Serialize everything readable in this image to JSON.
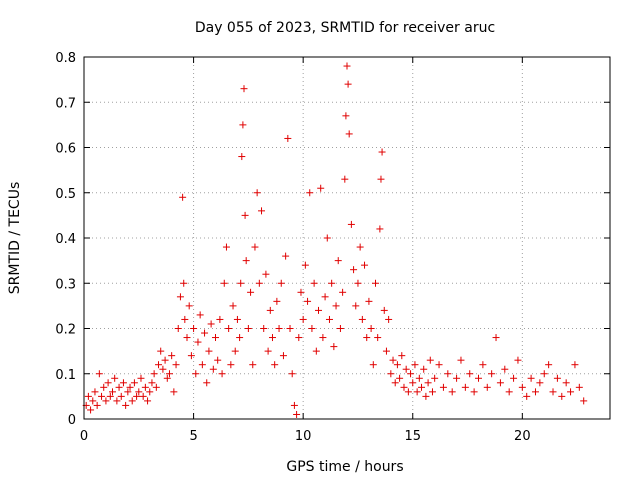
{
  "chart_data": {
    "type": "scatter",
    "title": "Day 055 of 2023, SRMTID for receiver aruc",
    "xlabel": "GPS time / hours",
    "ylabel": "SRMTID / TECUs",
    "xlim": [
      0,
      24
    ],
    "ylim": [
      0,
      0.8
    ],
    "xticks": [
      0,
      5,
      10,
      15,
      20
    ],
    "xtick_labels": [
      "0",
      "5",
      "10",
      "15",
      "20"
    ],
    "yticks": [
      0,
      0.1,
      0.2,
      0.3,
      0.4,
      0.5,
      0.6,
      0.7,
      0.8
    ],
    "ytick_labels": [
      "0",
      "0.1",
      "0.2",
      "0.3",
      "0.4",
      "0.5",
      "0.6",
      "0.7",
      "0.8"
    ],
    "grid": true,
    "marker": "plus",
    "marker_color": "#e00000",
    "series": [
      {
        "name": "SRMTID",
        "points": [
          [
            0.1,
            0.03
          ],
          [
            0.2,
            0.05
          ],
          [
            0.3,
            0.02
          ],
          [
            0.4,
            0.04
          ],
          [
            0.5,
            0.06
          ],
          [
            0.6,
            0.03
          ],
          [
            0.7,
            0.1
          ],
          [
            0.8,
            0.05
          ],
          [
            0.9,
            0.07
          ],
          [
            1.0,
            0.04
          ],
          [
            1.1,
            0.08
          ],
          [
            1.2,
            0.05
          ],
          [
            1.3,
            0.06
          ],
          [
            1.4,
            0.09
          ],
          [
            1.5,
            0.04
          ],
          [
            1.6,
            0.07
          ],
          [
            1.7,
            0.05
          ],
          [
            1.8,
            0.08
          ],
          [
            1.9,
            0.03
          ],
          [
            2.0,
            0.06
          ],
          [
            2.1,
            0.07
          ],
          [
            2.2,
            0.04
          ],
          [
            2.3,
            0.08
          ],
          [
            2.4,
            0.05
          ],
          [
            2.5,
            0.06
          ],
          [
            2.6,
            0.09
          ],
          [
            2.7,
            0.05
          ],
          [
            2.8,
            0.07
          ],
          [
            2.9,
            0.04
          ],
          [
            3.0,
            0.06
          ],
          [
            3.1,
            0.08
          ],
          [
            3.2,
            0.1
          ],
          [
            3.3,
            0.07
          ],
          [
            3.4,
            0.12
          ],
          [
            3.5,
            0.15
          ],
          [
            3.6,
            0.11
          ],
          [
            3.7,
            0.13
          ],
          [
            3.8,
            0.09
          ],
          [
            3.9,
            0.1
          ],
          [
            4.0,
            0.14
          ],
          [
            4.1,
            0.06
          ],
          [
            4.2,
            0.12
          ],
          [
            4.3,
            0.2
          ],
          [
            4.4,
            0.27
          ],
          [
            4.5,
            0.49
          ],
          [
            4.55,
            0.3
          ],
          [
            4.6,
            0.22
          ],
          [
            4.7,
            0.18
          ],
          [
            4.8,
            0.25
          ],
          [
            4.9,
            0.14
          ],
          [
            5.0,
            0.2
          ],
          [
            5.1,
            0.1
          ],
          [
            5.2,
            0.17
          ],
          [
            5.3,
            0.23
          ],
          [
            5.4,
            0.12
          ],
          [
            5.5,
            0.19
          ],
          [
            5.6,
            0.08
          ],
          [
            5.7,
            0.15
          ],
          [
            5.8,
            0.21
          ],
          [
            5.9,
            0.11
          ],
          [
            6.0,
            0.18
          ],
          [
            6.1,
            0.13
          ],
          [
            6.2,
            0.22
          ],
          [
            6.3,
            0.1
          ],
          [
            6.4,
            0.3
          ],
          [
            6.5,
            0.38
          ],
          [
            6.6,
            0.2
          ],
          [
            6.7,
            0.12
          ],
          [
            6.8,
            0.25
          ],
          [
            6.9,
            0.15
          ],
          [
            7.0,
            0.22
          ],
          [
            7.1,
            0.18
          ],
          [
            7.15,
            0.3
          ],
          [
            7.2,
            0.58
          ],
          [
            7.25,
            0.65
          ],
          [
            7.3,
            0.73
          ],
          [
            7.35,
            0.45
          ],
          [
            7.4,
            0.35
          ],
          [
            7.5,
            0.2
          ],
          [
            7.6,
            0.28
          ],
          [
            7.7,
            0.12
          ],
          [
            7.8,
            0.38
          ],
          [
            7.9,
            0.5
          ],
          [
            8.0,
            0.3
          ],
          [
            8.1,
            0.46
          ],
          [
            8.2,
            0.2
          ],
          [
            8.3,
            0.32
          ],
          [
            8.4,
            0.15
          ],
          [
            8.5,
            0.24
          ],
          [
            8.6,
            0.18
          ],
          [
            8.7,
            0.12
          ],
          [
            8.8,
            0.26
          ],
          [
            8.9,
            0.2
          ],
          [
            9.0,
            0.3
          ],
          [
            9.1,
            0.14
          ],
          [
            9.2,
            0.36
          ],
          [
            9.3,
            0.62
          ],
          [
            9.4,
            0.2
          ],
          [
            9.5,
            0.1
          ],
          [
            9.6,
            0.03
          ],
          [
            9.7,
            0.01
          ],
          [
            9.8,
            0.18
          ],
          [
            9.9,
            0.28
          ],
          [
            10.0,
            0.22
          ],
          [
            10.1,
            0.34
          ],
          [
            10.2,
            0.26
          ],
          [
            10.3,
            0.5
          ],
          [
            10.4,
            0.2
          ],
          [
            10.5,
            0.3
          ],
          [
            10.6,
            0.15
          ],
          [
            10.7,
            0.24
          ],
          [
            10.8,
            0.51
          ],
          [
            10.9,
            0.18
          ],
          [
            11.0,
            0.27
          ],
          [
            11.1,
            0.4
          ],
          [
            11.2,
            0.22
          ],
          [
            11.3,
            0.3
          ],
          [
            11.4,
            0.16
          ],
          [
            11.5,
            0.25
          ],
          [
            11.6,
            0.35
          ],
          [
            11.7,
            0.2
          ],
          [
            11.8,
            0.28
          ],
          [
            11.9,
            0.53
          ],
          [
            11.95,
            0.67
          ],
          [
            12.0,
            0.78
          ],
          [
            12.05,
            0.74
          ],
          [
            12.1,
            0.63
          ],
          [
            12.2,
            0.43
          ],
          [
            12.3,
            0.33
          ],
          [
            12.4,
            0.25
          ],
          [
            12.5,
            0.3
          ],
          [
            12.6,
            0.38
          ],
          [
            12.7,
            0.22
          ],
          [
            12.8,
            0.34
          ],
          [
            12.9,
            0.18
          ],
          [
            13.0,
            0.26
          ],
          [
            13.1,
            0.2
          ],
          [
            13.2,
            0.12
          ],
          [
            13.3,
            0.3
          ],
          [
            13.4,
            0.18
          ],
          [
            13.5,
            0.42
          ],
          [
            13.55,
            0.53
          ],
          [
            13.6,
            0.59
          ],
          [
            13.7,
            0.24
          ],
          [
            13.8,
            0.15
          ],
          [
            13.9,
            0.22
          ],
          [
            14.0,
            0.1
          ],
          [
            14.1,
            0.13
          ],
          [
            14.2,
            0.08
          ],
          [
            14.3,
            0.12
          ],
          [
            14.4,
            0.09
          ],
          [
            14.5,
            0.14
          ],
          [
            14.6,
            0.07
          ],
          [
            14.7,
            0.11
          ],
          [
            14.8,
            0.06
          ],
          [
            14.9,
            0.1
          ],
          [
            15.0,
            0.08
          ],
          [
            15.1,
            0.12
          ],
          [
            15.2,
            0.06
          ],
          [
            15.3,
            0.09
          ],
          [
            15.4,
            0.07
          ],
          [
            15.5,
            0.11
          ],
          [
            15.6,
            0.05
          ],
          [
            15.7,
            0.08
          ],
          [
            15.8,
            0.13
          ],
          [
            15.9,
            0.06
          ],
          [
            16.0,
            0.09
          ],
          [
            16.2,
            0.12
          ],
          [
            16.4,
            0.07
          ],
          [
            16.6,
            0.1
          ],
          [
            16.8,
            0.06
          ],
          [
            17.0,
            0.09
          ],
          [
            17.2,
            0.13
          ],
          [
            17.4,
            0.07
          ],
          [
            17.6,
            0.1
          ],
          [
            17.8,
            0.06
          ],
          [
            18.0,
            0.09
          ],
          [
            18.2,
            0.12
          ],
          [
            18.4,
            0.07
          ],
          [
            18.6,
            0.1
          ],
          [
            18.8,
            0.18
          ],
          [
            19.0,
            0.08
          ],
          [
            19.2,
            0.11
          ],
          [
            19.4,
            0.06
          ],
          [
            19.6,
            0.09
          ],
          [
            19.8,
            0.13
          ],
          [
            20.0,
            0.07
          ],
          [
            20.2,
            0.05
          ],
          [
            20.4,
            0.09
          ],
          [
            20.6,
            0.06
          ],
          [
            20.8,
            0.08
          ],
          [
            21.0,
            0.1
          ],
          [
            21.2,
            0.12
          ],
          [
            21.4,
            0.06
          ],
          [
            21.6,
            0.09
          ],
          [
            21.8,
            0.05
          ],
          [
            22.0,
            0.08
          ],
          [
            22.2,
            0.06
          ],
          [
            22.4,
            0.12
          ],
          [
            22.6,
            0.07
          ],
          [
            22.8,
            0.04
          ]
        ]
      }
    ]
  }
}
